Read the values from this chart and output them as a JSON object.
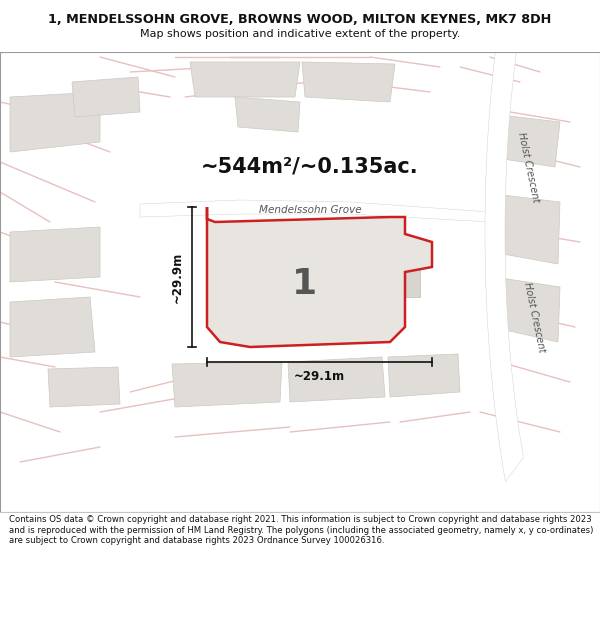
{
  "title_line1": "1, MENDELSSOHN GROVE, BROWNS WOOD, MILTON KEYNES, MK7 8DH",
  "title_line2": "Map shows position and indicative extent of the property.",
  "area_text": "~544m²/~0.135ac.",
  "label_number": "1",
  "dim_horizontal": "~29.1m",
  "dim_vertical": "~29.9m",
  "street_label": "Mendelssohn Grove",
  "street_label2": "Holst Crescent",
  "footer": "Contains OS data © Crown copyright and database right 2021. This information is subject to Crown copyright and database rights 2023 and is reproduced with the permission of HM Land Registry. The polygons (including the associated geometry, namely x, y co-ordinates) are subject to Crown copyright and database rights 2023 Ordnance Survey 100026316.",
  "bg_color": "#f5f3f0",
  "block_fill": "#e0ddd8",
  "block_edge": "#ccc8c0",
  "plot_fill": "#e8e5e0",
  "plot_outline": "#cc2020",
  "road_line": "#e8c0c0",
  "title_bg": "#ffffff",
  "footer_bg": "#ffffff",
  "dim_color": "#111111",
  "label_color": "#555555",
  "street_color": "#555555"
}
